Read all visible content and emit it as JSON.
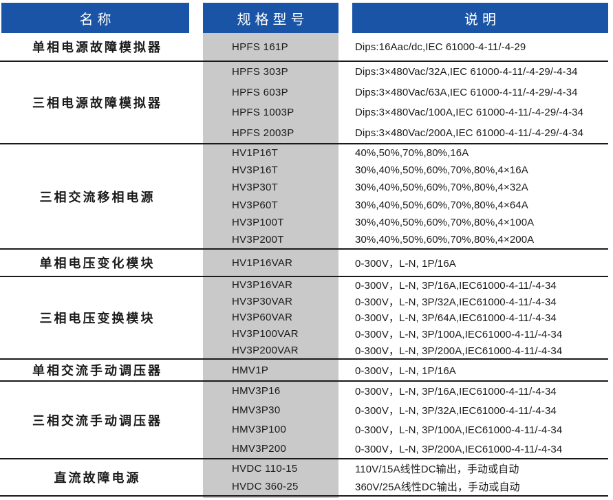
{
  "header": {
    "name_label": "名称",
    "model_label": "规格型号",
    "desc_label": "说明"
  },
  "groups": [
    {
      "name": "单相电源故障模拟器",
      "rows": [
        {
          "model": "HPFS 161P",
          "desc": "Dips:16Aac/dc,IEC 61000-4-11/-4-29"
        }
      ]
    },
    {
      "name": "三相电源故障模拟器",
      "rows": [
        {
          "model": "HPFS 303P",
          "desc": "Dips:3×480Vac/32A,IEC 61000-4-11/-4-29/-4-34"
        },
        {
          "model": "HPFS 603P",
          "desc": "Dips:3×480Vac/63A,IEC 61000-4-11/-4-29/-4-34"
        },
        {
          "model": "HPFS 1003P",
          "desc": "Dips:3×480Vac/100A,IEC 61000-4-11/-4-29/-4-34"
        },
        {
          "model": "HPFS 2003P",
          "desc": "Dips:3×480Vac/200A,IEC 61000-4-11/-4-29/-4-34"
        }
      ]
    },
    {
      "name": "三相交流移相电源",
      "rows": [
        {
          "model": "HV1P16T",
          "desc": "40%,50%,70%,80%,16A"
        },
        {
          "model": "HV3P16T",
          "desc": "30%,40%,50%,60%,70%,80%,4×16A"
        },
        {
          "model": "HV3P30T",
          "desc": "30%,40%,50%,60%,70%,80%,4×32A"
        },
        {
          "model": "HV3P60T",
          "desc": "30%,40%,50%,60%,70%,80%,4×64A"
        },
        {
          "model": "HV3P100T",
          "desc": "30%,40%,50%,60%,70%,80%,4×100A"
        },
        {
          "model": "HV3P200T",
          "desc": "30%,40%,50%,60%,70%,80%,4×200A"
        }
      ]
    },
    {
      "name": "单相电压变化模块",
      "rows": [
        {
          "model": "HV1P16VAR",
          "desc": "0-300V，L-N, 1P/16A"
        }
      ]
    },
    {
      "name": "三相电压变换模块",
      "rows": [
        {
          "model": "HV3P16VAR",
          "desc": "0-300V，L-N, 3P/16A,IEC61000-4-11/-4-34"
        },
        {
          "model": "HV3P30VAR",
          "desc": "0-300V，L-N, 3P/32A,IEC61000-4-11/-4-34"
        },
        {
          "model": "HV3P60VAR",
          "desc": "0-300V，L-N, 3P/64A,IEC61000-4-11/-4-34"
        },
        {
          "model": "HV3P100VAR",
          "desc": "0-300V，L-N, 3P/100A,IEC61000-4-11/-4-34"
        },
        {
          "model": "HV3P200VAR",
          "desc": "0-300V，L-N, 3P/200A,IEC61000-4-11/-4-34"
        }
      ]
    },
    {
      "name": "单相交流手动调压器",
      "rows": [
        {
          "model": "HMV1P",
          "desc": "0-300V，L-N, 1P/16A"
        }
      ]
    },
    {
      "name": "三相交流手动调压器",
      "rows": [
        {
          "model": "HMV3P16",
          "desc": "0-300V，L-N, 3P/16A,IEC61000-4-11/-4-34"
        },
        {
          "model": "HMV3P30",
          "desc": "0-300V，L-N, 3P/32A,IEC61000-4-11/-4-34"
        },
        {
          "model": "HMV3P100",
          "desc": "0-300V，L-N, 3P/100A,IEC61000-4-11/-4-34"
        },
        {
          "model": "HMV3P200",
          "desc": "0-300V，L-N, 3P/200A,IEC61000-4-11/-4-34"
        }
      ]
    },
    {
      "name": "直流故障电源",
      "rows": [
        {
          "model": "HVDC 110-15",
          "desc": "110V/15A线性DC输出，手动或自动"
        },
        {
          "model": "HVDC 360-25",
          "desc": "360V/25A线性DC输出，手动或自动"
        }
      ]
    }
  ],
  "colors": {
    "header_blue": "#1a54a6",
    "model_column_gray": "#c9c9c9",
    "rule_line": "#1a1a1a",
    "header_text": "#ffffff",
    "body_text": "#1a1a1a"
  }
}
